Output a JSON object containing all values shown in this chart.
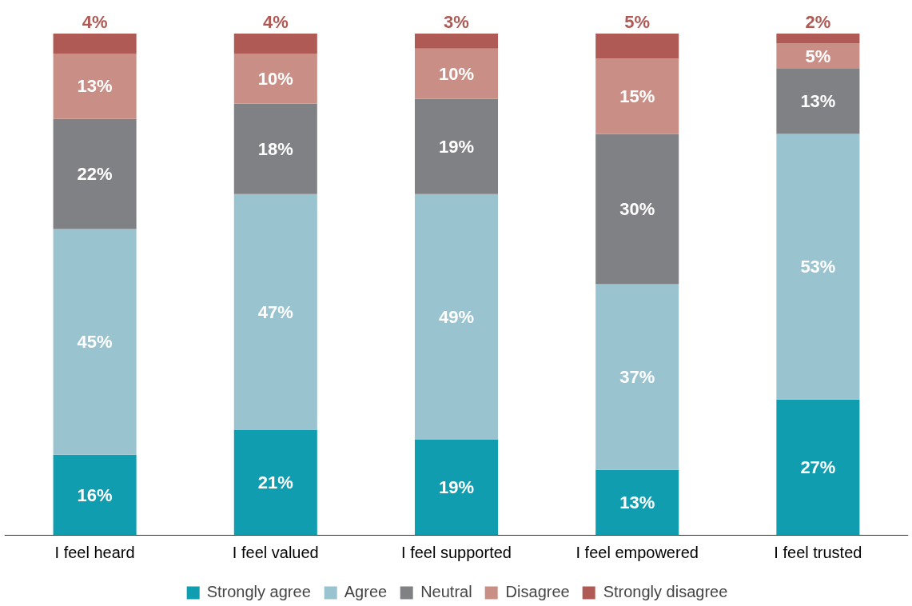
{
  "chart_data": {
    "type": "bar",
    "stacked": true,
    "legend": "bottom",
    "grid": false,
    "categories": [
      "I feel heard",
      "I feel valued",
      "I feel supported",
      "I feel empowered",
      "I feel trusted"
    ],
    "series": [
      {
        "name": "Strongly agree",
        "color": "#109db0",
        "values": [
          16,
          21,
          19,
          13,
          27
        ],
        "value_labels": [
          "16%",
          "21%",
          "19%",
          "13%",
          "27%"
        ]
      },
      {
        "name": "Agree",
        "color": "#9ac3d0",
        "values": [
          45,
          47,
          49,
          37,
          53
        ],
        "value_labels": [
          "45%",
          "47%",
          "49%",
          "37%",
          "53%"
        ]
      },
      {
        "name": "Neutral",
        "color": "#808185",
        "values": [
          22,
          18,
          19,
          30,
          13
        ],
        "value_labels": [
          "22%",
          "18%",
          "19%",
          "30%",
          "13%"
        ]
      },
      {
        "name": "Disagree",
        "color": "#c98f86",
        "values": [
          13,
          10,
          10,
          15,
          5
        ],
        "value_labels": [
          "13%",
          "10%",
          "10%",
          "15%",
          "5%"
        ]
      },
      {
        "name": "Strongly disagree",
        "color": "#b05a55",
        "values": [
          4,
          4,
          3,
          5,
          2
        ],
        "value_labels": [
          "4%",
          "4%",
          "3%",
          "5%",
          "2%"
        ]
      }
    ]
  }
}
